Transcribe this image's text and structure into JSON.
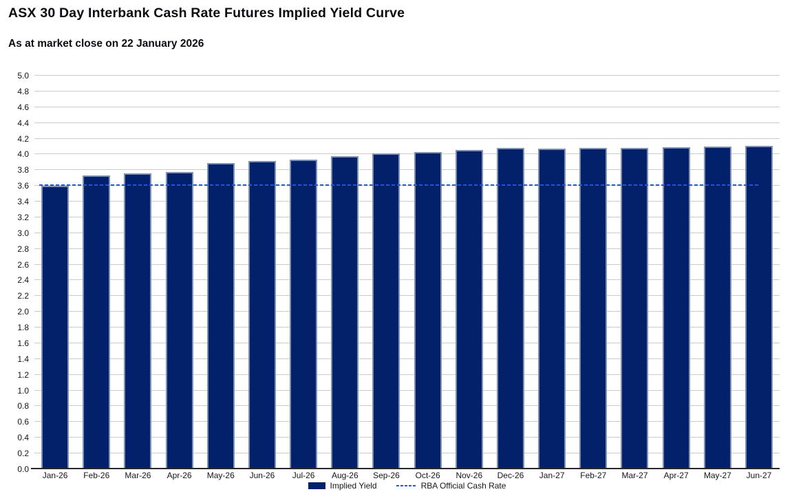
{
  "header": {
    "title": "ASX 30 Day Interbank Cash Rate Futures Implied Yield Curve",
    "subtitle": "As at market close on 22 January 2026"
  },
  "chart_data": {
    "type": "bar",
    "title": "ASX 30 Day Interbank Cash Rate Futures Implied Yield Curve",
    "subtitle": "As at market close on 22 January 2026",
    "categories": [
      "Jan-26",
      "Feb-26",
      "Mar-26",
      "Apr-26",
      "May-26",
      "Jun-26",
      "Jul-26",
      "Aug-26",
      "Sep-26",
      "Oct-26",
      "Nov-26",
      "Dec-26",
      "Jan-27",
      "Feb-27",
      "Mar-27",
      "Apr-27",
      "May-27",
      "Jun-27"
    ],
    "series": [
      {
        "name": "Implied Yield",
        "type": "bar",
        "color": "#03206B",
        "values": [
          3.6,
          3.73,
          3.76,
          3.78,
          3.89,
          3.92,
          3.93,
          3.98,
          4.01,
          4.03,
          4.06,
          4.08,
          4.07,
          4.08,
          4.08,
          4.09,
          4.1,
          4.11
        ]
      },
      {
        "name": "RBA Official Cash Rate",
        "type": "line",
        "line_style": "dashed",
        "color": "#2156D9",
        "value": 3.6
      }
    ],
    "xlabel": "",
    "ylabel": "",
    "ylim": [
      0.0,
      5.0
    ],
    "ytick_step": 0.2,
    "ytick_format_decimals": 1,
    "grid": "horizontal",
    "legend_position": "bottom-center"
  },
  "colors": {
    "background": "#FFFFFF",
    "bar_fill": "#03206B",
    "bar_border": "#7D90B5",
    "rba_dashed_line": "#2156D9",
    "gridline": "#CBCBCB",
    "axis_line": "#26262B",
    "text": "#14141C"
  }
}
